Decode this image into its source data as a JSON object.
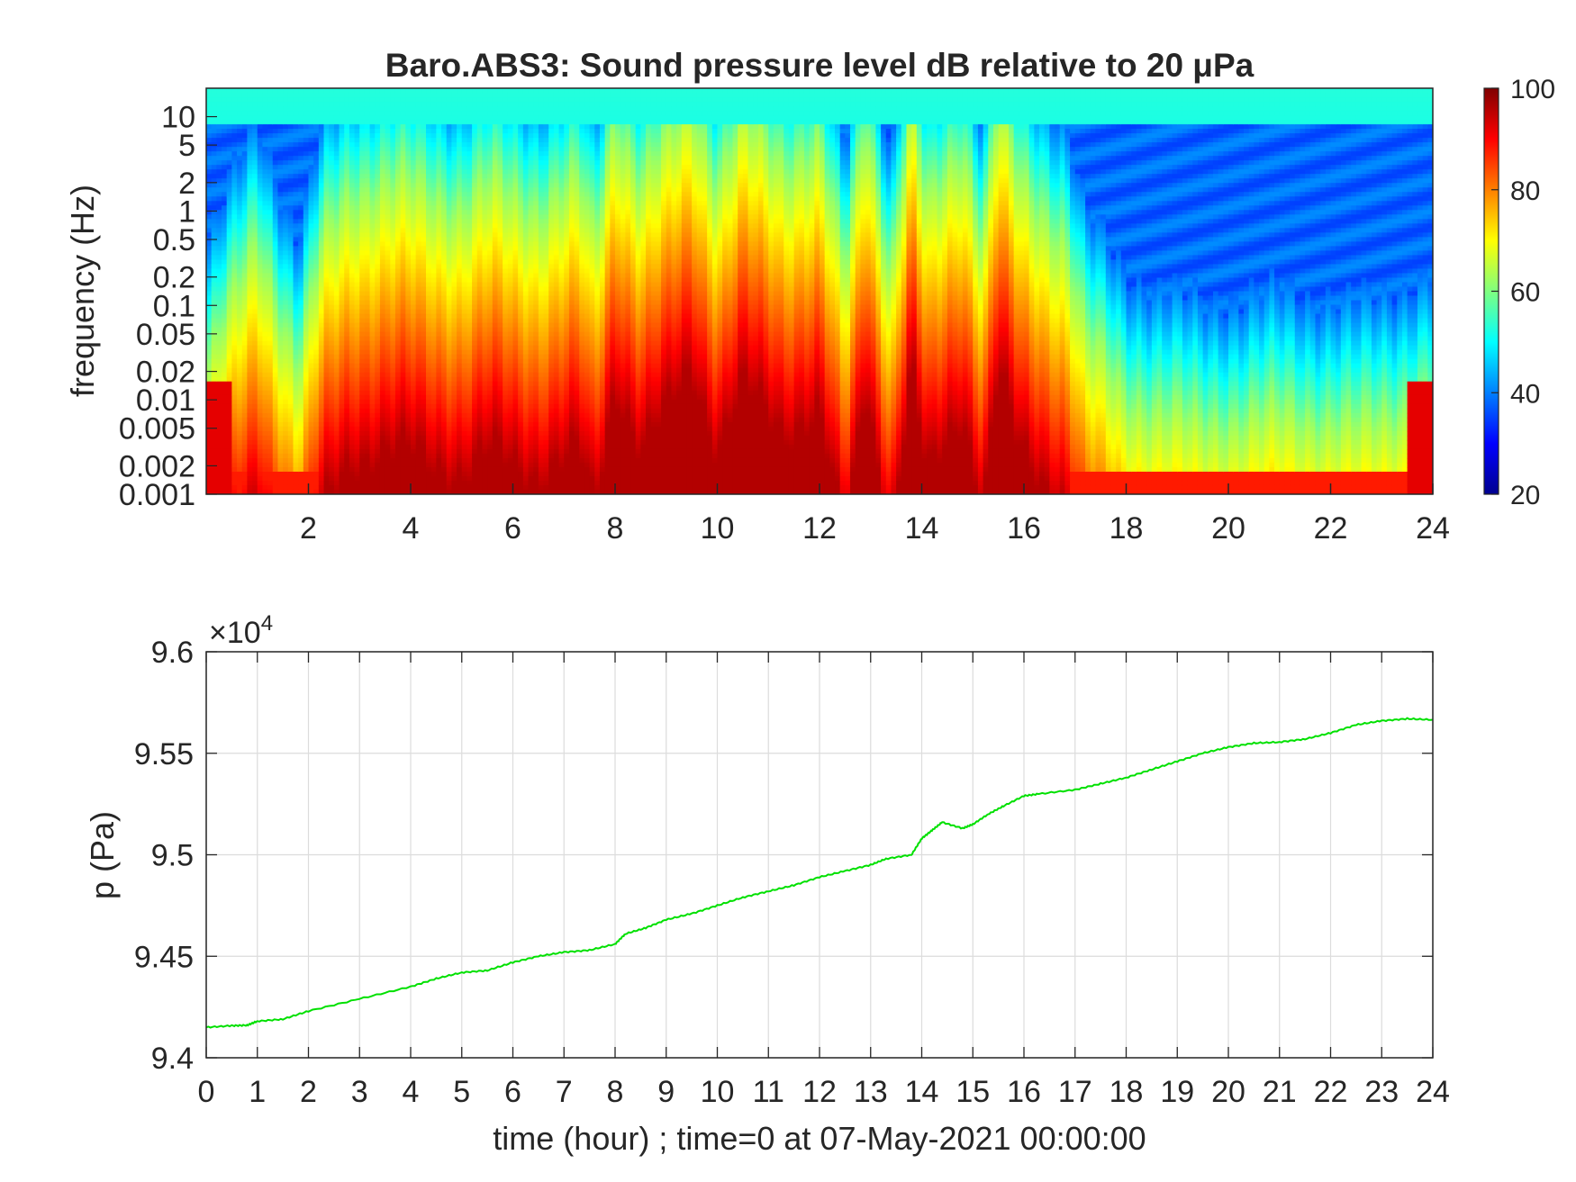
{
  "chart_data": [
    {
      "type": "heatmap",
      "title": "Baro.ABS3: Sound pressure level dB relative to 20 μPa",
      "ylabel": "frequency (Hz)",
      "xlabel": "",
      "x_tick_labels": [
        "2",
        "4",
        "6",
        "8",
        "10",
        "12",
        "14",
        "16",
        "18",
        "20",
        "22",
        "24"
      ],
      "x_ticks": [
        2,
        4,
        6,
        8,
        10,
        12,
        14,
        16,
        18,
        20,
        22,
        24
      ],
      "xlim": [
        0,
        24
      ],
      "y_scale": "log",
      "y_tick_labels": [
        "10",
        "5",
        "2",
        "1",
        "0.5",
        "0.2",
        "0.1",
        "0.05",
        "0.02",
        "0.01",
        "0.005",
        "0.002",
        "0.001"
      ],
      "y_ticks": [
        10,
        5,
        2,
        1,
        0.5,
        0.2,
        0.1,
        0.05,
        0.02,
        0.01,
        0.005,
        0.002,
        0.001
      ],
      "ylim": [
        0.001,
        20
      ],
      "colormap": "jet",
      "colorbar": {
        "ticks": [
          "100",
          "80",
          "60",
          "40",
          "20"
        ],
        "range": [
          20,
          100
        ]
      },
      "time_bands": [
        {
          "x": 0,
          "edge": 0.02
        },
        {
          "x": 1,
          "edge": 0.5
        },
        {
          "x": 1.8,
          "edge": 0.02
        },
        {
          "x": 2.3,
          "edge": 0.5
        },
        {
          "x": 2.8,
          "edge": 1.5
        },
        {
          "x": 4,
          "edge": 2
        },
        {
          "x": 5,
          "edge": 1
        },
        {
          "x": 5.6,
          "edge": 2
        },
        {
          "x": 6.5,
          "edge": 1
        },
        {
          "x": 7.3,
          "edge": 2
        },
        {
          "x": 7.6,
          "edge": 0.5
        },
        {
          "x": 8,
          "edge": 10
        },
        {
          "x": 8.5,
          "edge": 2
        },
        {
          "x": 9,
          "edge": 5
        },
        {
          "x": 9.5,
          "edge": 15
        },
        {
          "x": 10,
          "edge": 2
        },
        {
          "x": 10.5,
          "edge": 10
        },
        {
          "x": 11.3,
          "edge": 3
        },
        {
          "x": 12,
          "edge": 5
        },
        {
          "x": 12.5,
          "edge": 0.2
        },
        {
          "x": 12.9,
          "edge": 10
        },
        {
          "x": 13.4,
          "edge": 0.2
        },
        {
          "x": 13.8,
          "edge": 15
        },
        {
          "x": 14.1,
          "edge": 1
        },
        {
          "x": 14.8,
          "edge": 5
        },
        {
          "x": 15.2,
          "edge": 0.5
        },
        {
          "x": 15.5,
          "edge": 15
        },
        {
          "x": 15.9,
          "edge": 2
        },
        {
          "x": 16.3,
          "edge": 1
        },
        {
          "x": 16.8,
          "edge": 0.5
        },
        {
          "x": 17.2,
          "edge": 0.05
        },
        {
          "x": 18,
          "edge": 0.01
        },
        {
          "x": 19.5,
          "edge": 0.005
        },
        {
          "x": 21,
          "edge": 0.007
        },
        {
          "x": 22.5,
          "edge": 0.005
        },
        {
          "x": 24,
          "edge": 0.01
        }
      ]
    },
    {
      "type": "line",
      "title": "",
      "xlabel": "time (hour) ; time=0 at 07-May-2021 00:00:00",
      "ylabel": "p (Pa)",
      "xlim": [
        0,
        24
      ],
      "ylim": [
        94000,
        96000
      ],
      "x_tick_labels": [
        "0",
        "1",
        "2",
        "3",
        "4",
        "5",
        "6",
        "7",
        "8",
        "9",
        "10",
        "11",
        "12",
        "13",
        "14",
        "15",
        "16",
        "17",
        "18",
        "19",
        "20",
        "21",
        "22",
        "23",
        "24"
      ],
      "x_ticks": [
        0,
        1,
        2,
        3,
        4,
        5,
        6,
        7,
        8,
        9,
        10,
        11,
        12,
        13,
        14,
        15,
        16,
        17,
        18,
        19,
        20,
        21,
        22,
        23,
        24
      ],
      "y_tick_labels": [
        "9.6",
        "9.55",
        "9.5",
        "9.45",
        "9.4"
      ],
      "y_ticks": [
        96000,
        95500,
        95000,
        94500,
        94000
      ],
      "y_exponent_base": "×10",
      "y_exponent_power": "4",
      "grid": true,
      "series": [
        {
          "color": "#00e000",
          "x": [
            0,
            0.5,
            0.8,
            1,
            1.5,
            2,
            3,
            4,
            4.5,
            5,
            5.5,
            6,
            6.5,
            7,
            7.5,
            8,
            8.2,
            8.6,
            9,
            9.5,
            10,
            10.5,
            11,
            11.5,
            12,
            12.5,
            13,
            13.3,
            13.8,
            14,
            14.2,
            14.4,
            14.8,
            15,
            15.3,
            15.6,
            16,
            16.3,
            17,
            17.5,
            18,
            18.5,
            19,
            19.5,
            20,
            20.5,
            21,
            21.5,
            22,
            22.5,
            23,
            23.5,
            24
          ],
          "y": [
            94150,
            94158,
            94160,
            94180,
            94190,
            94230,
            94290,
            94350,
            94390,
            94420,
            94430,
            94470,
            94500,
            94520,
            94530,
            94560,
            94610,
            94640,
            94680,
            94710,
            94750,
            94790,
            94820,
            94850,
            94890,
            94920,
            94950,
            94980,
            95000,
            95080,
            95120,
            95160,
            95130,
            95150,
            95200,
            95240,
            95290,
            95300,
            95320,
            95350,
            95380,
            95420,
            95460,
            95500,
            95530,
            95550,
            95555,
            95570,
            95600,
            95640,
            95660,
            95670,
            95665
          ]
        }
      ]
    }
  ]
}
